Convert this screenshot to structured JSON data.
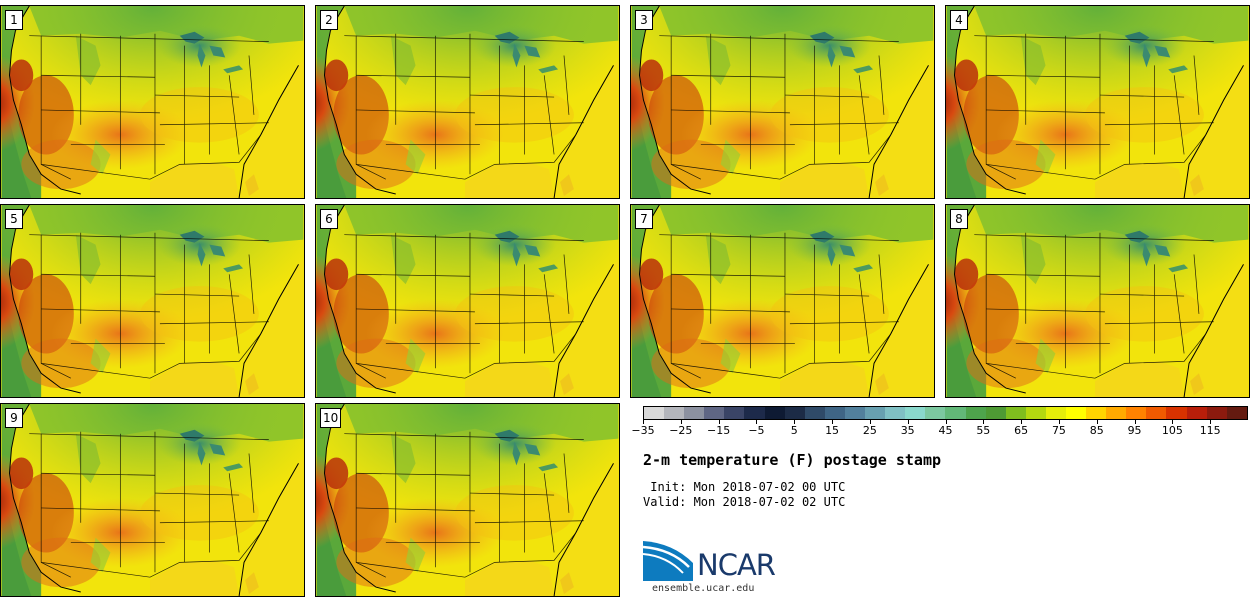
{
  "stamps": [
    {
      "label": "1"
    },
    {
      "label": "2"
    },
    {
      "label": "3"
    },
    {
      "label": "4"
    },
    {
      "label": "5"
    },
    {
      "label": "6"
    },
    {
      "label": "7"
    },
    {
      "label": "8"
    },
    {
      "label": "9"
    },
    {
      "label": "10"
    }
  ],
  "colorbar": {
    "colors": [
      "#d9d9d9",
      "#b4b6bc",
      "#8c91a0",
      "#5f6684",
      "#3a4466",
      "#1d2a4a",
      "#0e1a33",
      "#1c2b46",
      "#2f4a68",
      "#3f6585",
      "#52809c",
      "#68a0b0",
      "#80c0c4",
      "#8ad8cc",
      "#7cc8a0",
      "#62b878",
      "#4ea44c",
      "#4e9a34",
      "#7fbe1e",
      "#b4d810",
      "#e6ee0a",
      "#ffff00",
      "#ffd400",
      "#ffaa00",
      "#ff8200",
      "#f05a00",
      "#d83200",
      "#b81e0a",
      "#8c1a0e",
      "#641a10"
    ],
    "ticks": [
      "−35",
      "−25",
      "−15",
      "−5",
      "5",
      "15",
      "25",
      "35",
      "45",
      "55",
      "65",
      "75",
      "85",
      "95",
      "105",
      "115"
    ],
    "range": [
      -35,
      125
    ]
  },
  "title": "2-m temperature (F) postage stamp",
  "init_line": " Init: Mon 2018-07-02 00 UTC",
  "valid_line": "Valid: Mon 2018-07-02 02 UTC",
  "logo": {
    "text": "NCAR",
    "color": "#0d7bbf"
  },
  "website": "ensemble.ucar.edu"
}
